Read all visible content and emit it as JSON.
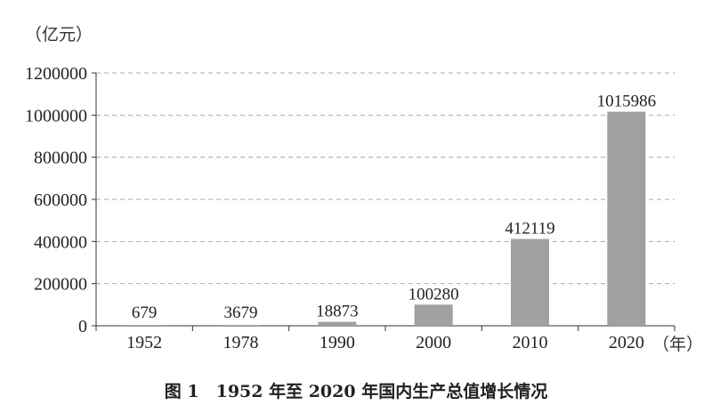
{
  "chart_data": {
    "type": "bar",
    "title": "图 1　1952 年至 2020 年国内生产总值增长情况",
    "ylabel": "（亿元）",
    "xlabel": "（年）",
    "categories": [
      "1952",
      "1978",
      "1990",
      "2000",
      "2010",
      "2020"
    ],
    "values": [
      679,
      3679,
      18873,
      100280,
      412119,
      1015986
    ],
    "data_labels": [
      "679",
      "3679",
      "18873",
      "100280",
      "412119",
      "1015986"
    ],
    "ylim": [
      0,
      1200000
    ],
    "yticks": [
      0,
      200000,
      400000,
      600000,
      800000,
      1000000,
      1200000
    ],
    "ytick_labels": [
      "0",
      "200000",
      "400000",
      "600000",
      "800000",
      "1000000",
      "1200000"
    ],
    "grid": true,
    "bar_color": "#a0a0a0"
  }
}
